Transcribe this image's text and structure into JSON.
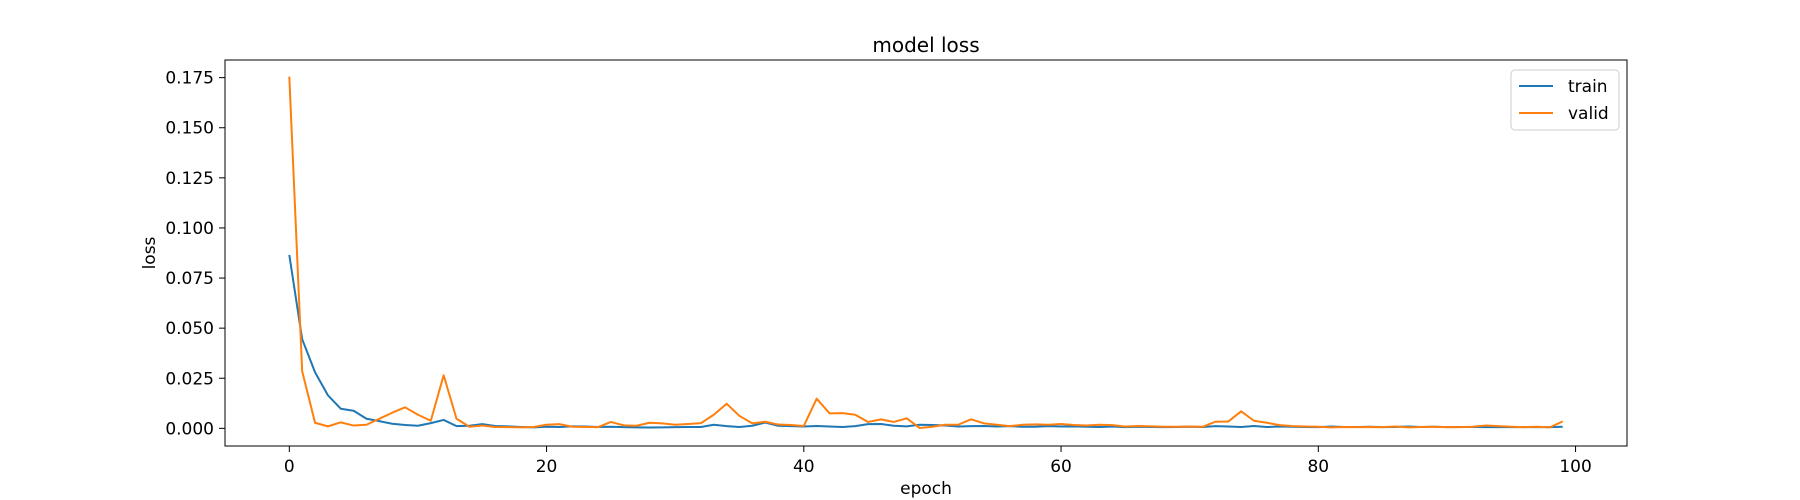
{
  "chart_data": {
    "type": "line",
    "title": "model loss",
    "xlabel": "epoch",
    "ylabel": "loss",
    "xlim": [
      -5,
      104
    ],
    "ylim": [
      -0.0088,
      0.1838
    ],
    "xticks": [
      0,
      20,
      40,
      60,
      80,
      100
    ],
    "xtick_labels": [
      "0",
      "20",
      "40",
      "60",
      "80",
      "100"
    ],
    "yticks": [
      0.0,
      0.025,
      0.05,
      0.075,
      0.1,
      0.125,
      0.15,
      0.175
    ],
    "ytick_labels": [
      "0.000",
      "0.025",
      "0.050",
      "0.075",
      "0.100",
      "0.125",
      "0.150",
      "0.175"
    ],
    "grid": false,
    "legend_position": "top-right",
    "series": [
      {
        "name": "train",
        "color": "#1f77b4",
        "values": [
          0.0865,
          0.0445,
          0.028,
          0.0165,
          0.0098,
          0.0088,
          0.0048,
          0.0036,
          0.0023,
          0.0017,
          0.0013,
          0.0026,
          0.0042,
          0.0011,
          0.0013,
          0.0021,
          0.0012,
          0.001,
          0.0007,
          0.0005,
          0.0008,
          0.0007,
          0.001,
          0.0009,
          0.0007,
          0.0008,
          0.0006,
          0.0005,
          0.0004,
          0.0005,
          0.0006,
          0.0007,
          0.0007,
          0.0018,
          0.0011,
          0.0007,
          0.0013,
          0.0029,
          0.0013,
          0.0011,
          0.0009,
          0.0012,
          0.0009,
          0.0007,
          0.0011,
          0.0021,
          0.0022,
          0.0013,
          0.001,
          0.0018,
          0.0017,
          0.0014,
          0.0009,
          0.0011,
          0.0012,
          0.0009,
          0.0011,
          0.0008,
          0.0008,
          0.0011,
          0.0009,
          0.001,
          0.0008,
          0.0007,
          0.0009,
          0.0006,
          0.0008,
          0.0007,
          0.0006,
          0.0007,
          0.0008,
          0.0007,
          0.0011,
          0.0009,
          0.0007,
          0.0012,
          0.0007,
          0.0009,
          0.0008,
          0.0007,
          0.0006,
          0.0009,
          0.0007,
          0.0007,
          0.0008,
          0.0006,
          0.0007,
          0.0009,
          0.0007,
          0.0008,
          0.0006,
          0.0007,
          0.0007,
          0.0006,
          0.0007,
          0.0006,
          0.0006,
          0.0006,
          0.0006,
          0.0008
        ]
      },
      {
        "name": "valid",
        "color": "#ff7f0e",
        "values": [
          0.1755,
          0.0285,
          0.0028,
          0.001,
          0.003,
          0.0014,
          0.0018,
          0.0048,
          0.0078,
          0.0105,
          0.0068,
          0.0038,
          0.0265,
          0.0048,
          0.0008,
          0.0014,
          0.0007,
          0.0006,
          0.0005,
          0.0007,
          0.0018,
          0.0021,
          0.0008,
          0.0007,
          0.0006,
          0.0032,
          0.0015,
          0.0013,
          0.0028,
          0.0025,
          0.0018,
          0.0022,
          0.0026,
          0.0068,
          0.0123,
          0.0062,
          0.0025,
          0.0033,
          0.0019,
          0.0017,
          0.0012,
          0.0148,
          0.0075,
          0.0076,
          0.0068,
          0.0032,
          0.0045,
          0.0032,
          0.005,
          0.0002,
          0.0008,
          0.0018,
          0.0018,
          0.0045,
          0.0025,
          0.0018,
          0.0011,
          0.0018,
          0.002,
          0.0018,
          0.0022,
          0.0017,
          0.0014,
          0.0018,
          0.0016,
          0.0009,
          0.0012,
          0.001,
          0.0008,
          0.0008,
          0.0009,
          0.0008,
          0.0033,
          0.0034,
          0.0085,
          0.0038,
          0.0028,
          0.0016,
          0.0011,
          0.0009,
          0.0008,
          0.0005,
          0.0007,
          0.0006,
          0.0007,
          0.0006,
          0.0009,
          0.0005,
          0.0007,
          0.0008,
          0.0006,
          0.0006,
          0.0008,
          0.0014,
          0.0011,
          0.0008,
          0.0006,
          0.0008,
          0.0005,
          0.0035
        ]
      }
    ]
  }
}
